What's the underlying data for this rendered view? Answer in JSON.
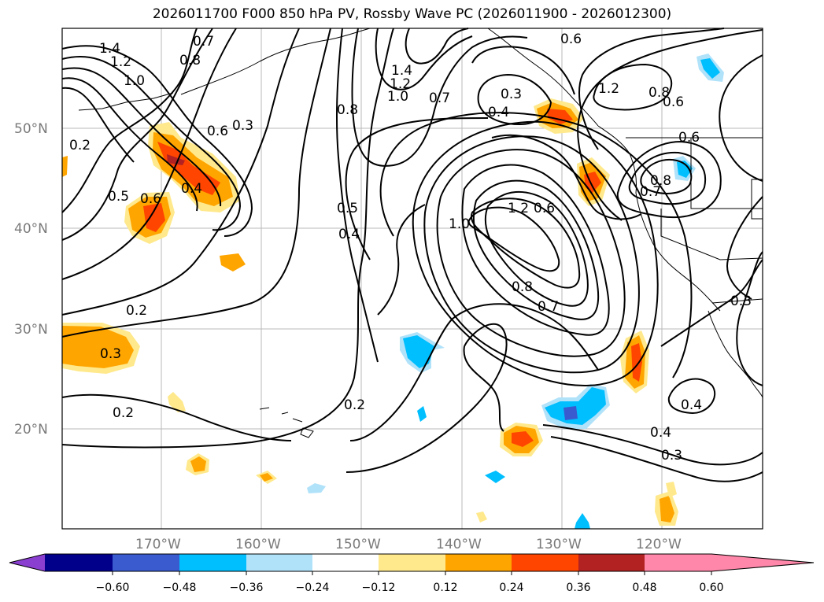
{
  "title": "2026011700 F000 850 hPa PV, Rossby Wave PC (2026011900 - 2026012300)",
  "map": {
    "lon_ticks": [
      "170°W",
      "160°W",
      "150°W",
      "140°W",
      "130°W",
      "120°W"
    ],
    "lat_ticks": [
      "50°N",
      "40°N",
      "30°N",
      "20°N"
    ],
    "contour_labels": [
      "1.4",
      "1.2",
      "1.0",
      "0.8",
      "0.7",
      "0.6",
      "0.5",
      "0.4",
      "0.3",
      "0.2",
      "0.8",
      "0.7",
      "0.6",
      "0.5",
      "0.4",
      "0.3",
      "0.2",
      "1.4",
      "1.2",
      "1.0",
      "0.8",
      "0.7",
      "0.6",
      "0.4",
      "0.3",
      "1.0",
      "1.2",
      "0.8",
      "0.6",
      "0.4",
      "0.3",
      "0.2",
      "0.2",
      "0.8",
      "0.7",
      "0.6",
      "1.2",
      "0.6",
      "0.4",
      "0.3"
    ]
  },
  "colorbar": {
    "colors": [
      "#8b3fd1",
      "#00008b",
      "#3a5bd0",
      "#00bfff",
      "#b0e2fa",
      "#ffffff",
      "#ffe98c",
      "#ffa500",
      "#ff4500",
      "#b22222",
      "#ff88aa"
    ],
    "ticks": [
      "−0.60",
      "−0.48",
      "−0.36",
      "−0.24",
      "−0.12",
      "0.12",
      "0.24",
      "0.36",
      "0.48",
      "0.60"
    ]
  }
}
